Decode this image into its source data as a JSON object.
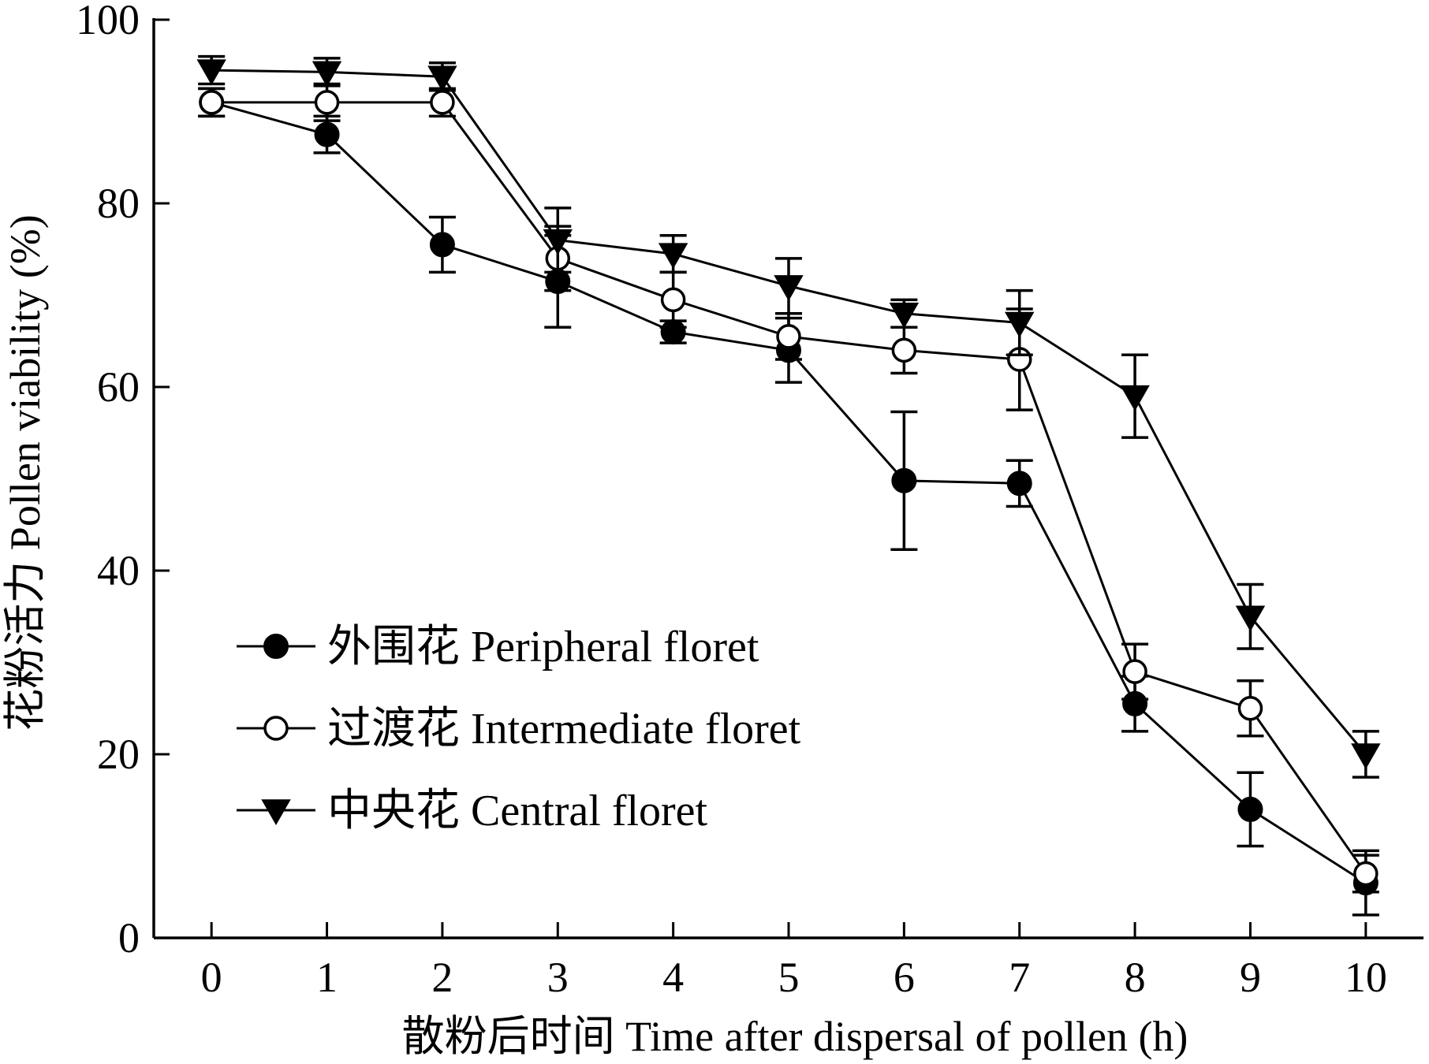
{
  "chart_data": {
    "type": "line",
    "title": "",
    "xlabel": "散粉后时间 Time after dispersal of pollen (h)",
    "ylabel": "花粉活力 Pollen viability (%)",
    "x": [
      0,
      1,
      2,
      3,
      4,
      5,
      6,
      7,
      8,
      9,
      10
    ],
    "xlim": [
      -0.5,
      10.5
    ],
    "ylim": [
      0,
      100
    ],
    "xticks": [
      "0",
      "1",
      "2",
      "3",
      "4",
      "5",
      "6",
      "7",
      "8",
      "9",
      "10"
    ],
    "yticks": [
      "0",
      "20",
      "40",
      "60",
      "80",
      "100"
    ],
    "grid": false,
    "legend_position": "bottom-left",
    "series": [
      {
        "name": "外围花 Peripheral floret",
        "marker": "filled-circle",
        "values": [
          91,
          87.5,
          75.5,
          71.5,
          66,
          64,
          49.8,
          49.5,
          25.5,
          14,
          6
        ],
        "errors": [
          1.5,
          2,
          3,
          5,
          1.2,
          3.5,
          7.5,
          2.5,
          3,
          4,
          3.5
        ]
      },
      {
        "name": "过渡花 Intermediate floret",
        "marker": "open-circle",
        "values": [
          91,
          91,
          91,
          74,
          69.5,
          65.5,
          64,
          63,
          29,
          25,
          7
        ],
        "errors": [
          1.5,
          2,
          1.5,
          3.5,
          3,
          2.5,
          2.5,
          5.5,
          3,
          3,
          2
        ]
      },
      {
        "name": "中央花 Central floret",
        "marker": "filled-triangle-down",
        "values": [
          94.5,
          94.3,
          93.8,
          76,
          74.5,
          71,
          68,
          67,
          59,
          35,
          20
        ],
        "errors": [
          1.5,
          1.5,
          1.5,
          3.5,
          2,
          3,
          1.5,
          3.5,
          4.5,
          3.5,
          2.5
        ]
      }
    ]
  }
}
